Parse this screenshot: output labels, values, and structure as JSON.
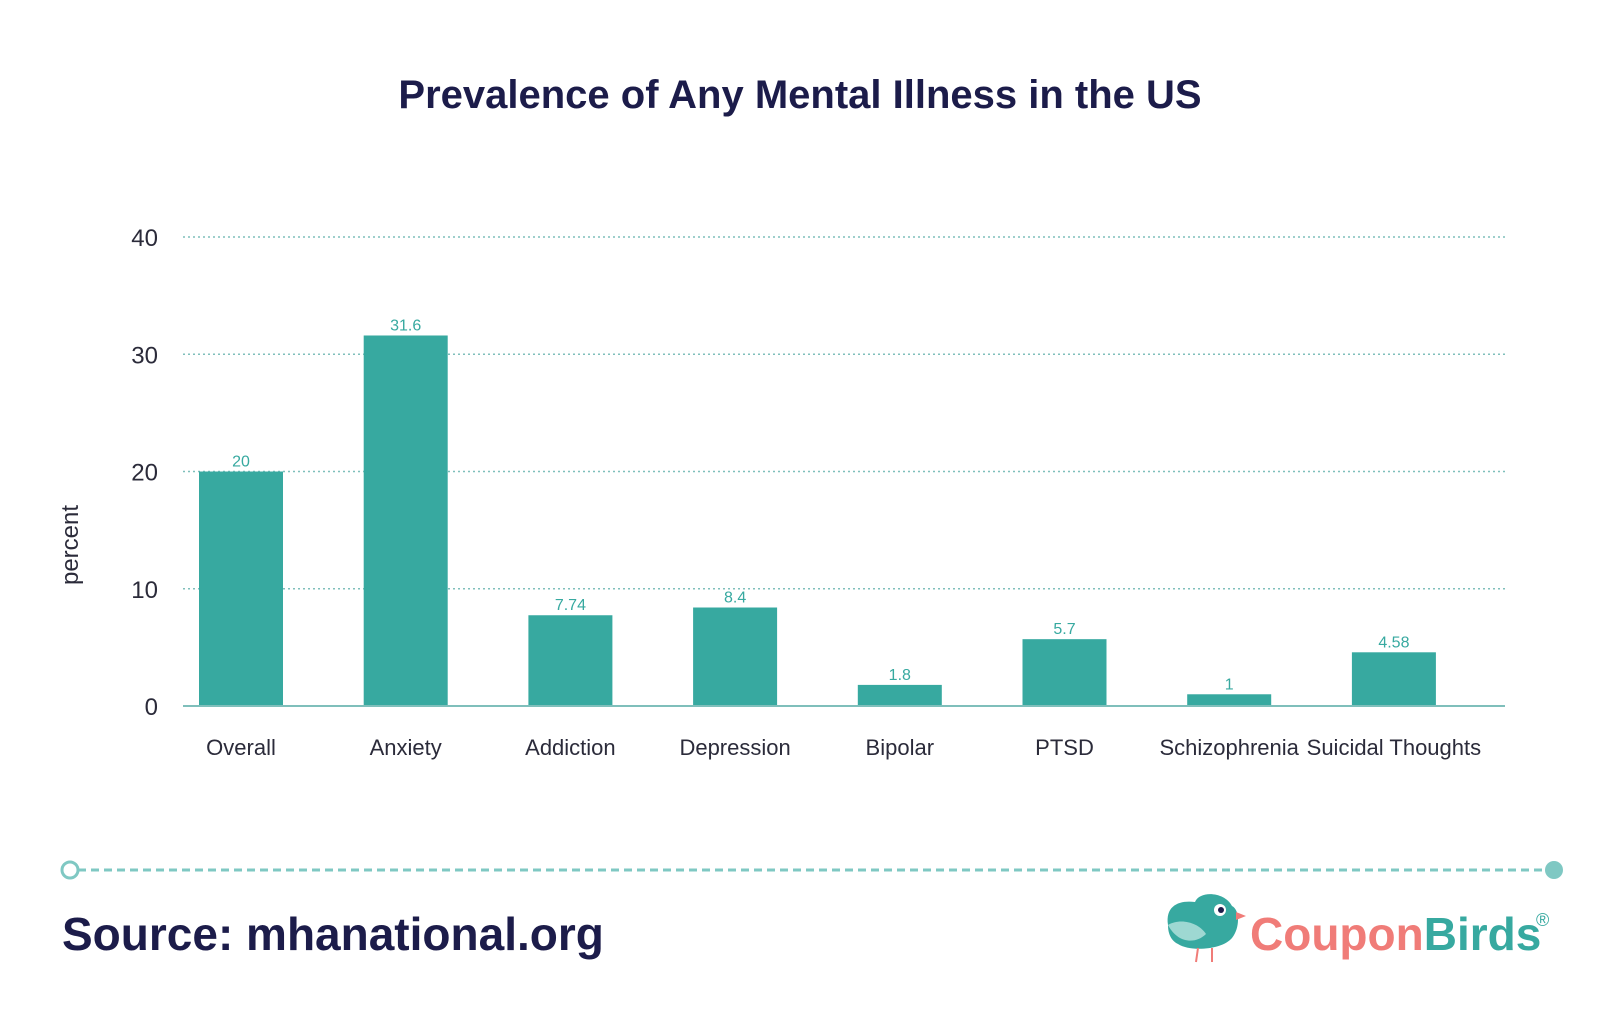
{
  "chart_data": {
    "type": "bar",
    "title": "Prevalence of Any Mental Illness in the US",
    "xlabel": "",
    "ylabel": "percent",
    "ylim": [
      0,
      40
    ],
    "yticks": [
      0,
      10,
      20,
      30,
      40
    ],
    "grid": true,
    "categories": [
      "Overall",
      "Anxiety",
      "Addiction",
      "Depression",
      "Bipolar",
      "PTSD",
      "Schizophrenia",
      "Suicidal Thoughts"
    ],
    "values": [
      20,
      31.6,
      7.74,
      8.4,
      1.8,
      5.7,
      1,
      4.58
    ],
    "data_labels": [
      "20",
      "31.6",
      "7.74",
      "8.4",
      "1.8",
      "5.7",
      "1",
      "4.58"
    ]
  },
  "footer": {
    "source": "Source: mhanational.org",
    "brand_part1": "Coupon",
    "brand_part2": "Birds",
    "brand_mark": "®"
  },
  "colors": {
    "bar": "#37a9a0",
    "title": "#1c1c4a",
    "grid": "#7fbfbb",
    "brand_coral": "#f07c78",
    "brand_teal": "#37a9a0"
  },
  "icons": {
    "logo": "bird-icon"
  }
}
